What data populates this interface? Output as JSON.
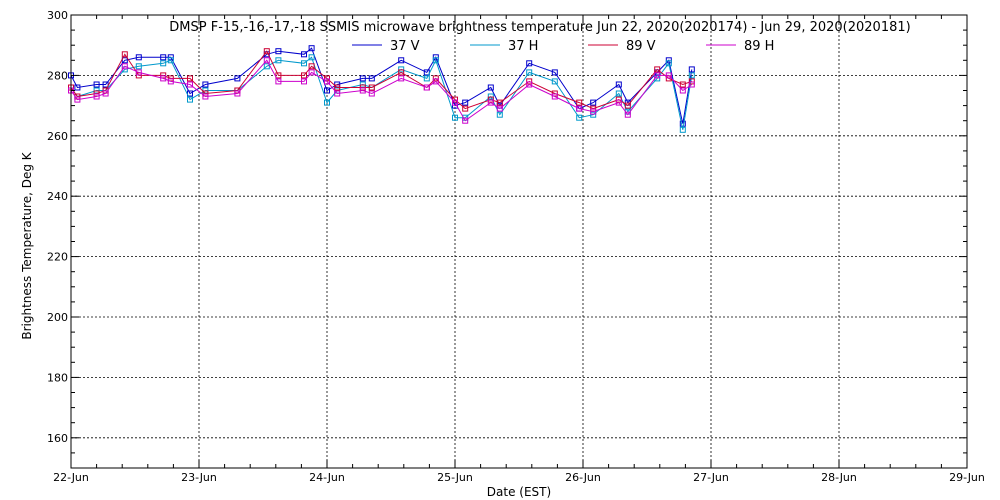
{
  "chart_data": {
    "type": "line",
    "title": "DMSP F-15,-16,-17,-18 SSMIS microwave brightness temperature Jun 22, 2020(2020174) - Jun 29, 2020(2020181)",
    "xlabel": "Date (EST)",
    "ylabel": "Brightness Temperature, Deg K",
    "x_unit": "days (0 = 22-Jun 00:00)",
    "xlim": [
      0,
      7
    ],
    "ylim": [
      150,
      300
    ],
    "x_ticks": [
      "22-Jun",
      "23-Jun",
      "24-Jun",
      "25-Jun",
      "26-Jun",
      "27-Jun",
      "28-Jun",
      "29-Jun"
    ],
    "y_ticks": [
      160,
      180,
      200,
      220,
      240,
      260,
      280,
      300
    ],
    "grid": true,
    "legend_position": "top",
    "series": [
      {
        "name": "37 V",
        "color": "#0000cc",
        "x": [
          0.0,
          0.05,
          0.2,
          0.27,
          0.42,
          0.53,
          0.72,
          0.78,
          0.93,
          1.05,
          1.3,
          1.53,
          1.62,
          1.82,
          1.88,
          2.0,
          2.08,
          2.28,
          2.35,
          2.58,
          2.78,
          2.85,
          3.0,
          3.08,
          3.28,
          3.35,
          3.58,
          3.78,
          3.97,
          4.08,
          4.28,
          4.35,
          4.58,
          4.67,
          4.78,
          4.85
        ],
        "y": [
          280,
          276,
          277,
          277,
          285,
          286,
          286,
          286,
          274,
          277,
          279,
          287,
          288,
          287,
          289,
          275,
          277,
          279,
          279,
          285,
          281,
          286,
          270,
          271,
          276,
          270,
          284,
          281,
          269,
          271,
          277,
          271,
          281,
          285,
          264,
          282
        ]
      },
      {
        "name": "37 H",
        "color": "#0099cc",
        "x": [
          0.0,
          0.05,
          0.2,
          0.27,
          0.42,
          0.53,
          0.72,
          0.78,
          0.93,
          1.05,
          1.3,
          1.53,
          1.62,
          1.82,
          1.88,
          2.0,
          2.08,
          2.28,
          2.35,
          2.58,
          2.78,
          2.85,
          3.0,
          3.08,
          3.28,
          3.35,
          3.58,
          3.78,
          3.97,
          4.08,
          4.28,
          4.35,
          4.58,
          4.67,
          4.78,
          4.85
        ],
        "y": [
          276,
          273,
          275,
          275,
          282,
          283,
          284,
          285,
          272,
          275,
          275,
          283,
          285,
          284,
          286,
          271,
          275,
          277,
          276,
          282,
          279,
          285,
          266,
          266,
          273,
          267,
          281,
          278,
          266,
          267,
          274,
          268,
          279,
          284,
          262,
          280
        ]
      },
      {
        "name": "89 V",
        "color": "#cc0033",
        "x": [
          0.0,
          0.05,
          0.2,
          0.27,
          0.42,
          0.53,
          0.72,
          0.78,
          0.93,
          1.05,
          1.3,
          1.53,
          1.62,
          1.82,
          1.88,
          2.0,
          2.08,
          2.28,
          2.35,
          2.58,
          2.78,
          2.85,
          3.0,
          3.08,
          3.28,
          3.35,
          3.58,
          3.78,
          3.97,
          4.08,
          4.28,
          4.35,
          4.58,
          4.67,
          4.78,
          4.85
        ],
        "y": [
          276,
          273,
          274,
          275,
          287,
          280,
          280,
          279,
          279,
          274,
          275,
          288,
          280,
          280,
          283,
          279,
          276,
          276,
          276,
          281,
          276,
          279,
          272,
          269,
          272,
          271,
          278,
          274,
          271,
          269,
          272,
          270,
          282,
          279,
          277,
          278
        ]
      },
      {
        "name": "89 H",
        "color": "#cc00cc",
        "x": [
          0.0,
          0.05,
          0.2,
          0.27,
          0.42,
          0.53,
          0.72,
          0.78,
          0.93,
          1.05,
          1.3,
          1.53,
          1.62,
          1.82,
          1.88,
          2.0,
          2.08,
          2.28,
          2.35,
          2.58,
          2.78,
          2.85,
          3.0,
          3.08,
          3.28,
          3.35,
          3.58,
          3.78,
          3.97,
          4.08,
          4.28,
          4.35,
          4.58,
          4.67,
          4.78,
          4.85
        ],
        "y": [
          275,
          272,
          273,
          274,
          283,
          281,
          279,
          278,
          277,
          273,
          274,
          285,
          278,
          278,
          281,
          278,
          274,
          275,
          274,
          279,
          276,
          278,
          271,
          265,
          271,
          269,
          277,
          273,
          269,
          268,
          271,
          267,
          280,
          280,
          275,
          277
        ]
      }
    ]
  }
}
